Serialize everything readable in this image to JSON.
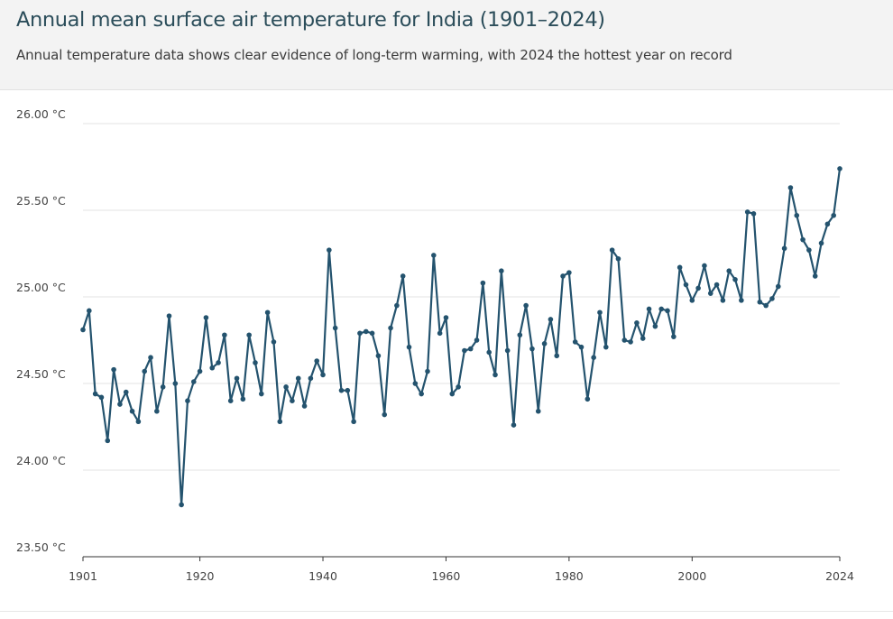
{
  "header": {
    "title": "Annual mean surface air temperature for India (1901–2024)",
    "subtitle": "Annual temperature data shows clear evidence of long-term warming, with 2024 the hottest year on record"
  },
  "colors": {
    "line": "#24536e",
    "grid": "#e3e3e3",
    "axis": "#333333",
    "header_bg": "#f3f3f3"
  },
  "chart_data": {
    "type": "line",
    "title": "Annual mean surface air temperature for India (1901–2024)",
    "subtitle": "Annual temperature data shows clear evidence of long-term warming, with 2024 the hottest year on record",
    "xlabel": "",
    "ylabel": "",
    "xlim": [
      1901,
      2024
    ],
    "ylim": [
      23.5,
      26.0
    ],
    "x_ticks": [
      "1901",
      "1920",
      "1940",
      "1960",
      "1980",
      "2000",
      "2024"
    ],
    "y_ticks": [
      "23.50 °C",
      "24.00 °C",
      "24.50 °C",
      "25.00 °C",
      "25.50 °C",
      "26.00 °C"
    ],
    "grid": "horizontal",
    "legend": "none",
    "x": [
      1901,
      1902,
      1903,
      1904,
      1905,
      1906,
      1907,
      1908,
      1909,
      1910,
      1911,
      1912,
      1913,
      1914,
      1915,
      1916,
      1917,
      1918,
      1919,
      1920,
      1921,
      1922,
      1923,
      1924,
      1925,
      1926,
      1927,
      1928,
      1929,
      1930,
      1931,
      1932,
      1933,
      1934,
      1935,
      1936,
      1937,
      1938,
      1939,
      1940,
      1941,
      1942,
      1943,
      1944,
      1945,
      1946,
      1947,
      1948,
      1949,
      1950,
      1951,
      1952,
      1953,
      1954,
      1955,
      1956,
      1957,
      1958,
      1959,
      1960,
      1961,
      1962,
      1963,
      1964,
      1965,
      1966,
      1967,
      1968,
      1969,
      1970,
      1971,
      1972,
      1973,
      1974,
      1975,
      1976,
      1977,
      1978,
      1979,
      1980,
      1981,
      1982,
      1983,
      1984,
      1985,
      1986,
      1987,
      1988,
      1989,
      1990,
      1991,
      1992,
      1993,
      1994,
      1995,
      1996,
      1997,
      1998,
      1999,
      2000,
      2001,
      2002,
      2003,
      2004,
      2005,
      2006,
      2007,
      2008,
      2009,
      2010,
      2011,
      2012,
      2013,
      2014,
      2015,
      2016,
      2017,
      2018,
      2019,
      2020,
      2021,
      2022,
      2023,
      2024
    ],
    "series": [
      {
        "values": [
          24.81,
          24.92,
          24.44,
          24.42,
          24.17,
          24.58,
          24.38,
          24.45,
          24.34,
          24.28,
          24.57,
          24.65,
          24.34,
          24.48,
          24.89,
          24.5,
          23.8,
          24.4,
          24.51,
          24.57,
          24.88,
          24.59,
          24.62,
          24.78,
          24.4,
          24.53,
          24.41,
          24.78,
          24.62,
          24.44,
          24.91,
          24.74,
          24.28,
          24.48,
          24.4,
          24.53,
          24.37,
          24.53,
          24.63,
          24.55,
          25.27,
          24.82,
          24.46,
          24.46,
          24.28,
          24.79,
          24.8,
          24.79,
          24.66,
          24.32,
          24.82,
          24.95,
          25.12,
          24.71,
          24.5,
          24.44,
          24.57,
          25.24,
          24.79,
          24.88,
          24.44,
          24.48,
          24.69,
          24.7,
          24.75,
          25.08,
          24.68,
          24.55,
          25.15,
          24.69,
          24.26,
          24.78,
          24.95,
          24.7,
          24.34,
          24.73,
          24.87,
          24.66,
          25.12,
          25.14,
          24.74,
          24.71,
          24.41,
          24.65,
          24.91,
          24.71,
          25.27,
          25.22,
          24.75,
          24.74,
          24.85,
          24.76,
          24.93,
          24.83,
          24.93,
          24.92,
          24.77,
          25.17,
          25.07,
          24.98,
          25.05,
          25.18,
          25.02,
          25.07,
          24.98,
          25.15,
          25.1,
          24.98,
          25.49,
          25.48,
          24.97,
          24.95,
          24.99,
          25.06,
          25.28,
          25.63,
          25.47,
          25.33,
          25.27,
          25.12,
          25.31,
          25.42,
          25.47,
          25.74
        ]
      }
    ]
  }
}
